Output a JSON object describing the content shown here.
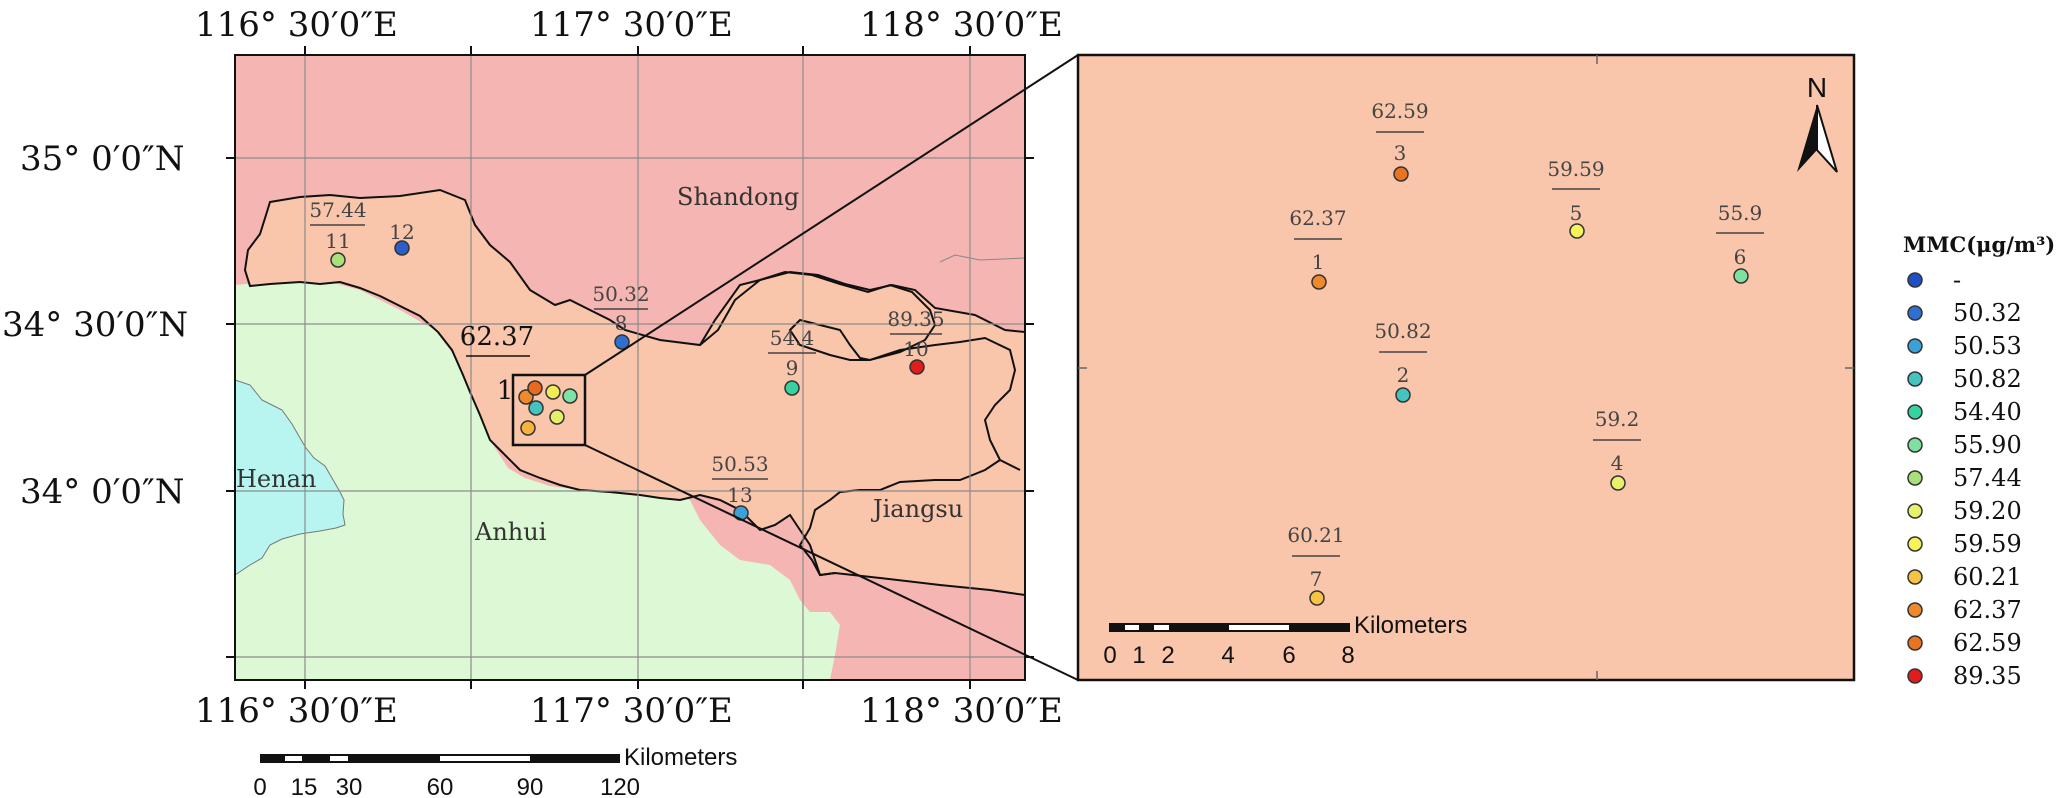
{
  "overview_map": {
    "lon_labels": [
      "116° 30′0″E",
      "117° 30′0″E",
      "118° 30′0″E"
    ],
    "lat_labels": [
      "35° 0′0″N",
      "34° 30′0″N",
      "34° 0′0″N"
    ],
    "regions": [
      "Shandong",
      "Henan",
      "Anhui",
      "Jiangsu"
    ],
    "sites": [
      {
        "id": "11",
        "value": "57.44",
        "color": "#a9e07a"
      },
      {
        "id": "12",
        "value": "",
        "color": "#2b5fc7"
      },
      {
        "id": "8",
        "value": "50.32",
        "color": "#2e6fd1"
      },
      {
        "id": "1",
        "value": "62.37",
        "color": "#ee8a2c"
      },
      {
        "id": "9",
        "value": "54.4",
        "color": "#35d3a0"
      },
      {
        "id": "10",
        "value": "89.35",
        "color": "#e01c1c"
      },
      {
        "id": "13",
        "value": "50.53",
        "color": "#3aa2d8"
      }
    ],
    "cluster_colors": [
      "#ee8a2c",
      "#e86a20",
      "#f4c84a",
      "#f0ec55",
      "#e6ef6a",
      "#44c4c0",
      "#7ee2a6",
      "#f6b23c"
    ],
    "scalebar": {
      "unit": "Kilometers",
      "ticks": [
        "0",
        "15",
        "30",
        "60",
        "90",
        "120"
      ]
    }
  },
  "inset_map": {
    "north_label": "N",
    "sites": [
      {
        "id": "3",
        "value": "62.59",
        "color": "#e8741f"
      },
      {
        "id": "5",
        "value": "59.59",
        "color": "#f5f25a"
      },
      {
        "id": "1",
        "value": "62.37",
        "color": "#ef8a2c"
      },
      {
        "id": "6",
        "value": "55.9",
        "color": "#7fe0a0"
      },
      {
        "id": "2",
        "value": "50.82",
        "color": "#45c3bf"
      },
      {
        "id": "4",
        "value": "59.2",
        "color": "#e8f16a"
      },
      {
        "id": "7",
        "value": "60.21",
        "color": "#f6c444"
      }
    ],
    "scalebar": {
      "unit": "Kilometers",
      "ticks": [
        "0",
        "1",
        "2",
        "4",
        "6",
        "8"
      ]
    }
  },
  "legend": {
    "title": "MMC(μg/m³)",
    "items": [
      {
        "label": "-",
        "color": "#1f4fc4"
      },
      {
        "label": "50.32",
        "color": "#2f6fd2"
      },
      {
        "label": "50.53",
        "color": "#3aa2d8"
      },
      {
        "label": "50.82",
        "color": "#45c3bf"
      },
      {
        "label": "54.40",
        "color": "#35d3a0"
      },
      {
        "label": "55.90",
        "color": "#7fe0a0"
      },
      {
        "label": "57.44",
        "color": "#a9e07a"
      },
      {
        "label": "59.20",
        "color": "#e8f16a"
      },
      {
        "label": "59.59",
        "color": "#f5f25a"
      },
      {
        "label": "60.21",
        "color": "#f6c444"
      },
      {
        "label": "62.37",
        "color": "#ef8a2c"
      },
      {
        "label": "62.59",
        "color": "#e8741f"
      },
      {
        "label": "89.35",
        "color": "#e01c1c"
      }
    ]
  },
  "colors": {
    "shandong": "#f5b5b2",
    "study_area": "#f9c5ab",
    "anhui": "#ddf8d4",
    "henan": "#b8f4f0",
    "grid": "#8c8c8c"
  }
}
